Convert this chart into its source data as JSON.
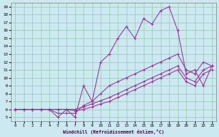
{
  "xlabel": "Windchill (Refroidissement éolien,°C)",
  "bg_color": "#cce8f0",
  "grid_color": "#99ccbb",
  "line_color": "#993399",
  "xlim": [
    -0.5,
    23.5
  ],
  "ylim": [
    4.5,
    19.5
  ],
  "xticks": [
    0,
    1,
    2,
    3,
    4,
    5,
    6,
    7,
    8,
    9,
    10,
    11,
    12,
    13,
    14,
    15,
    16,
    17,
    18,
    19,
    20,
    21,
    22,
    23
  ],
  "yticks": [
    5,
    6,
    7,
    8,
    9,
    10,
    11,
    12,
    13,
    14,
    15,
    16,
    17,
    18,
    19
  ],
  "line1_x": [
    0,
    1,
    2,
    3,
    4,
    5,
    6,
    7,
    8,
    9,
    10,
    11,
    12,
    13,
    14,
    15,
    16,
    17,
    18,
    19,
    20,
    21,
    22,
    23
  ],
  "line1_y": [
    6,
    6,
    6,
    6,
    6,
    5,
    6,
    5,
    9,
    7,
    12,
    13,
    15,
    16.5,
    15,
    17.5,
    16.8,
    18.5,
    19,
    16,
    10.5,
    11,
    9,
    11.5
  ],
  "line2_x": [
    0,
    1,
    2,
    3,
    4,
    5,
    6,
    7,
    8,
    9,
    10,
    11,
    12,
    13,
    14,
    15,
    16,
    17,
    18,
    19,
    20,
    21,
    22,
    23
  ],
  "line2_y": [
    6,
    6,
    6,
    6,
    6,
    5.5,
    5.5,
    5.5,
    6.5,
    7,
    8,
    9,
    9.5,
    10,
    10.5,
    11,
    11.5,
    12,
    12.5,
    13,
    11,
    10.5,
    12,
    11.5
  ],
  "line3_x": [
    0,
    1,
    2,
    3,
    4,
    5,
    6,
    7,
    8,
    9,
    10,
    11,
    12,
    13,
    14,
    15,
    16,
    17,
    18,
    19,
    20,
    21,
    22,
    23
  ],
  "line3_y": [
    6,
    6,
    6,
    6,
    6,
    6,
    6,
    6,
    6.3,
    6.7,
    7.1,
    7.5,
    8,
    8.5,
    9,
    9.5,
    10,
    10.5,
    11,
    11.5,
    10,
    9.5,
    11,
    11.5
  ],
  "line4_x": [
    0,
    1,
    2,
    3,
    4,
    5,
    6,
    7,
    8,
    9,
    10,
    11,
    12,
    13,
    14,
    15,
    16,
    17,
    18,
    19,
    20,
    21,
    22,
    23
  ],
  "line4_y": [
    6,
    6,
    6,
    6,
    6,
    6,
    6,
    5.8,
    6,
    6.3,
    6.7,
    7,
    7.5,
    8,
    8.5,
    9,
    9.5,
    10,
    10.5,
    11,
    9.5,
    9,
    10.5,
    11
  ]
}
